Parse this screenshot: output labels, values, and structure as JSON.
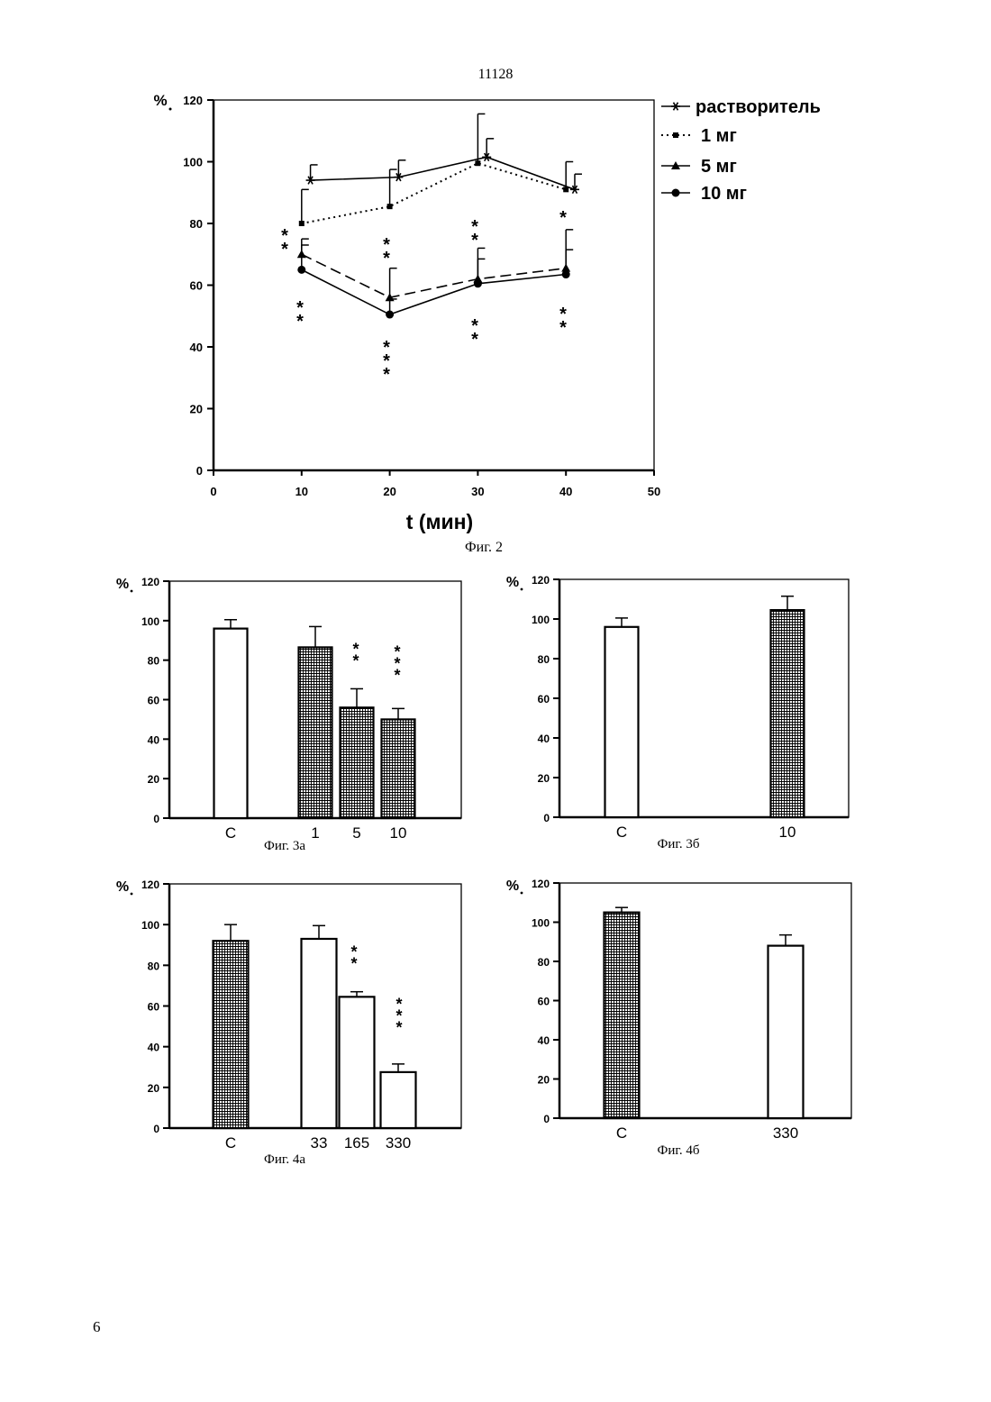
{
  "page": {
    "number_top": "11128",
    "number_bottom": "6"
  },
  "chart_data": [
    {
      "id": "fig2",
      "type": "line",
      "caption": "Фиг. 2",
      "ylabel": "%",
      "xlabel": "t (мин)",
      "xlim": [
        0,
        50
      ],
      "ylim": [
        0,
        120
      ],
      "xticks": [
        0,
        10,
        20,
        30,
        40,
        50
      ],
      "yticks": [
        0,
        20,
        40,
        60,
        80,
        100,
        120
      ],
      "legend_position": "right",
      "series": [
        {
          "name": "растворитель",
          "marker": "star",
          "dash": "solid",
          "x": [
            11,
            21,
            31,
            41
          ],
          "y": [
            94,
            95,
            101.5,
            91
          ],
          "err": [
            5,
            5.5,
            6,
            5
          ],
          "sig": [
            "",
            "",
            "",
            ""
          ]
        },
        {
          "name": "1 мг",
          "marker": "square",
          "dash": "dotted",
          "x": [
            10,
            20,
            30,
            40
          ],
          "y": [
            80,
            85.5,
            99.5,
            91
          ],
          "err": [
            11,
            12,
            16,
            9
          ],
          "sig": [
            "",
            "",
            "",
            ""
          ]
        },
        {
          "name": "5 мг",
          "marker": "triangle",
          "dash": "dashed",
          "x": [
            10,
            20,
            30,
            40
          ],
          "y": [
            70,
            56,
            62,
            65.5
          ],
          "err": [
            5,
            9.5,
            10,
            12.5
          ],
          "sig": [
            "**",
            "**",
            "**",
            "*"
          ]
        },
        {
          "name": "10 мг",
          "marker": "circle",
          "dash": "solid",
          "x": [
            10,
            20,
            30,
            40
          ],
          "y": [
            65,
            50.5,
            60.5,
            63.5
          ],
          "err": [
            8,
            5,
            8,
            8
          ],
          "sig": [
            "**",
            "***",
            "**",
            "**"
          ]
        }
      ]
    },
    {
      "id": "fig3a",
      "type": "bar",
      "caption": "Фиг. 3а",
      "ylabel": "%",
      "ylim": [
        0,
        120
      ],
      "yticks": [
        0,
        20,
        40,
        60,
        80,
        100,
        120
      ],
      "categories": [
        "C",
        "1",
        "5",
        "10"
      ],
      "values": [
        96,
        86.5,
        56,
        50
      ],
      "err": [
        4.5,
        10.5,
        9.5,
        5.5
      ],
      "fills": [
        "white",
        "hatched",
        "hatched",
        "hatched"
      ],
      "sig": [
        "",
        "",
        "**",
        "***"
      ]
    },
    {
      "id": "fig3b",
      "type": "bar",
      "caption": "Фиг. 3б",
      "ylabel": "%",
      "ylim": [
        0,
        120
      ],
      "yticks": [
        0,
        20,
        40,
        60,
        80,
        100,
        120
      ],
      "categories": [
        "C",
        "10"
      ],
      "values": [
        96,
        104.5
      ],
      "err": [
        4.5,
        7
      ],
      "fills": [
        "white",
        "hatched"
      ],
      "sig": [
        "",
        ""
      ]
    },
    {
      "id": "fig4a",
      "type": "bar",
      "caption": "Фиг. 4а",
      "ylabel": "%",
      "ylim": [
        0,
        120
      ],
      "yticks": [
        0,
        20,
        40,
        60,
        80,
        100,
        120
      ],
      "categories": [
        "C",
        "33",
        "165",
        "330"
      ],
      "values": [
        92,
        93,
        64.5,
        27.5
      ],
      "err": [
        8,
        6.5,
        2.5,
        4
      ],
      "fills": [
        "hatched",
        "white",
        "white",
        "white"
      ],
      "sig": [
        "",
        "",
        "**",
        "***"
      ]
    },
    {
      "id": "fig4b",
      "type": "bar",
      "caption": "Фиг. 4б",
      "ylabel": "%",
      "ylim": [
        0,
        120
      ],
      "yticks": [
        0,
        20,
        40,
        60,
        80,
        100,
        120
      ],
      "categories": [
        "C",
        "330"
      ],
      "values": [
        105,
        88
      ],
      "err": [
        2.5,
        5.5
      ],
      "fills": [
        "hatched",
        "white"
      ],
      "sig": [
        "",
        ""
      ]
    }
  ]
}
